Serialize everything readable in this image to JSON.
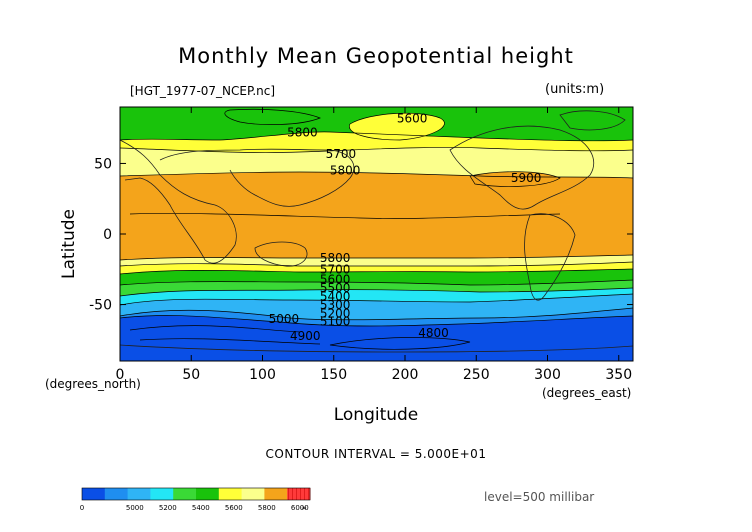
{
  "title": "Monthly Mean Geopotential height",
  "file_label": "[HGT_1977-07_NCEP.nc]",
  "units_label": "(units:m)",
  "x_axis_label": "Longitude",
  "y_axis_label": "Latitude",
  "x_unit_label": "(degrees_east)",
  "y_unit_label": "(degrees_north)",
  "contour_interval": "CONTOUR INTERVAL = 5.000E+01",
  "level_label": "level=500 millibar",
  "colors": {
    "blue": "#0a4fe6",
    "mid_blue": "#1f8ef0",
    "light_blue": "#2fb4f5",
    "cyan": "#23e6f5",
    "light_green": "#3ad936",
    "green": "#19c30b",
    "yellow": "#ffff38",
    "light_yellow": "#fbff8c",
    "orange": "#f4a41b",
    "red": "#ff2020"
  },
  "chart_data": {
    "type": "contour-map",
    "title": "Monthly Mean Geopotential height",
    "xlabel": "Longitude",
    "ylabel": "Latitude",
    "xlim": [
      0,
      360
    ],
    "ylim": [
      -90,
      90
    ],
    "x_ticks": [
      "0",
      "50",
      "100",
      "150",
      "200",
      "250",
      "300",
      "350"
    ],
    "y_ticks": [
      "50",
      "0",
      "-50"
    ],
    "contour_labels": [
      {
        "text": "5600",
        "lon": 205,
        "lat": 79
      },
      {
        "text": "5800",
        "lon": 128,
        "lat": 69
      },
      {
        "text": "5700",
        "lon": 155,
        "lat": 54
      },
      {
        "text": "5800",
        "lon": 158,
        "lat": 42
      },
      {
        "text": "5900",
        "lon": 285,
        "lat": 37
      },
      {
        "text": "5800",
        "lon": 151,
        "lat": -20
      },
      {
        "text": "5700",
        "lon": 151,
        "lat": -28
      },
      {
        "text": "5600",
        "lon": 151,
        "lat": -35
      },
      {
        "text": "5500",
        "lon": 151,
        "lat": -41
      },
      {
        "text": "5400",
        "lon": 151,
        "lat": -47
      },
      {
        "text": "5300",
        "lon": 151,
        "lat": -53
      },
      {
        "text": "5200",
        "lon": 151,
        "lat": -59
      },
      {
        "text": "5100",
        "lon": 151,
        "lat": -65
      },
      {
        "text": "5000",
        "lon": 115,
        "lat": -63
      },
      {
        "text": "4900",
        "lon": 130,
        "lat": -75
      },
      {
        "text": "4800",
        "lon": 220,
        "lat": -73
      }
    ],
    "colorbar": {
      "ticks": [
        "0",
        "5000",
        "5200",
        "5400",
        "5600",
        "5800",
        "6000",
        "∞"
      ]
    }
  }
}
